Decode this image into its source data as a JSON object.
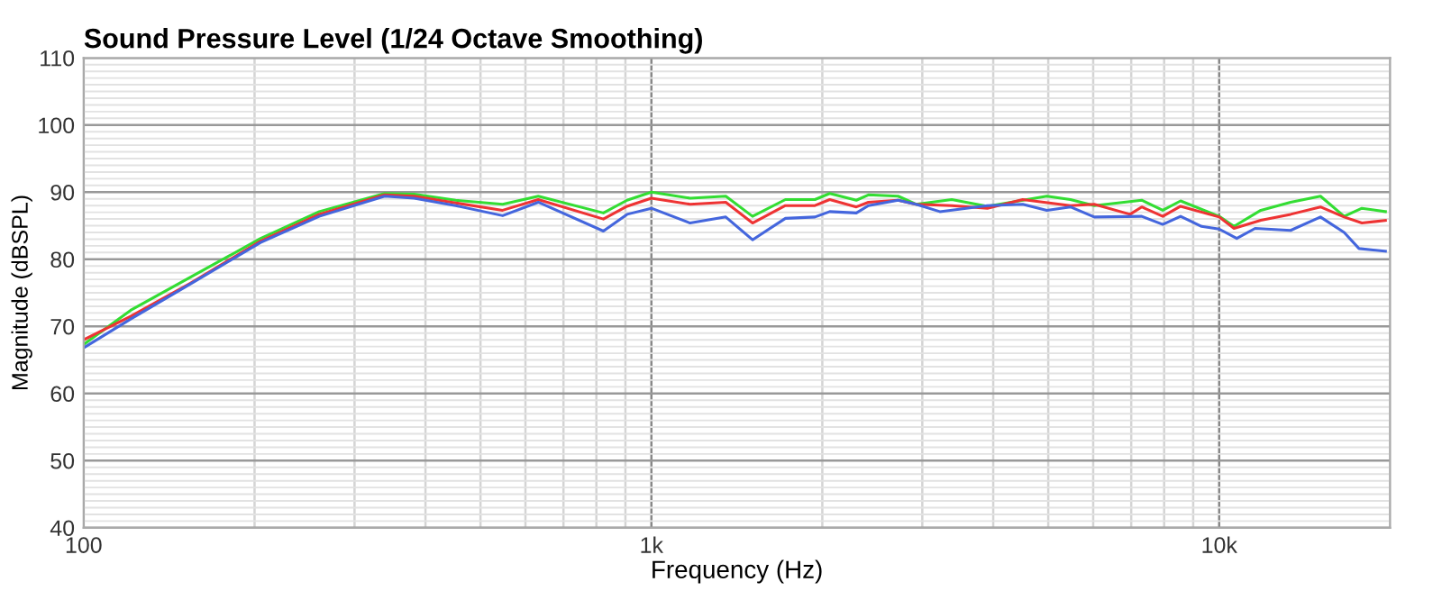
{
  "chart_data": {
    "type": "line",
    "title": "Sound Pressure Level (1/24 Octave Smoothing)",
    "xlabel": "Frequency (Hz)",
    "ylabel": "Magnitude (dBSPL)",
    "log": "x",
    "xlim": [
      100,
      20000
    ],
    "xticks": [
      {
        "value": 100,
        "label": "100"
      },
      {
        "value": 1000,
        "label": "1k"
      },
      {
        "value": 10000,
        "label": "10k"
      }
    ],
    "ylim": [
      40,
      110
    ],
    "yticks": [
      40,
      50,
      60,
      70,
      80,
      90,
      100,
      110
    ],
    "grid": true,
    "line_style": "solid",
    "marker": "none",
    "series": [
      {
        "color": "#33dd33",
        "x": [
          100,
          121,
          154,
          205,
          260,
          339,
          382,
          452,
          547,
          632,
          823,
          906,
          1000,
          1170,
          1352,
          1507,
          1722,
          1941,
          2061,
          2296,
          2411,
          2720,
          2925,
          3381,
          3906,
          4971,
          5470,
          6026,
          7305,
          7955,
          8552,
          10000,
          10620,
          11840,
          13360,
          15080,
          16600,
          17840,
          19630
        ],
        "values": [
          67.3,
          72.4,
          77.3,
          83.1,
          87.1,
          89.8,
          89.7,
          88.8,
          88.2,
          89.4,
          86.9,
          88.8,
          90,
          89.1,
          89.4,
          86.4,
          88.9,
          88.9,
          89.8,
          88.8,
          89.6,
          89.4,
          88.2,
          88.9,
          87.9,
          89.4,
          88.9,
          88.0,
          88.8,
          87.3,
          88.7,
          86.4,
          84.9,
          87.3,
          88.5,
          89.4,
          86.4,
          87.6,
          87.1
        ]
      },
      {
        "color": "#ee3333",
        "x": [
          100,
          121,
          154,
          205,
          260,
          339,
          382,
          452,
          547,
          632,
          823,
          906,
          1000,
          1170,
          1352,
          1507,
          1722,
          1941,
          2061,
          2296,
          2411,
          2720,
          2925,
          3381,
          3906,
          4508,
          5470,
          6026,
          6966,
          7305,
          7955,
          8552,
          10000,
          10620,
          11840,
          13360,
          15080,
          16600,
          17840,
          19630
        ],
        "values": [
          68.0,
          71.5,
          76.4,
          82.7,
          86.7,
          89.6,
          89.4,
          88.4,
          87.3,
          88.9,
          86.0,
          87.9,
          89.1,
          88.2,
          88.5,
          85.4,
          88.0,
          88.0,
          88.9,
          87.8,
          88.5,
          88.8,
          88.2,
          88.0,
          87.6,
          88.9,
          88.0,
          88.2,
          86.7,
          87.8,
          86.4,
          87.9,
          86.3,
          84.6,
          85.8,
          86.7,
          87.8,
          86.3,
          85.4,
          85.8
        ]
      },
      {
        "color": "#4466dd",
        "x": [
          100,
          121,
          154,
          205,
          260,
          339,
          382,
          452,
          547,
          632,
          823,
          906,
          1000,
          1170,
          1352,
          1507,
          1722,
          1941,
          2061,
          2296,
          2411,
          2720,
          2925,
          3221,
          3906,
          4508,
          4971,
          5470,
          6026,
          7305,
          7955,
          8552,
          9311,
          10000,
          10740,
          11570,
          13360,
          15080,
          16600,
          17630,
          19630
        ],
        "values": [
          66.8,
          71.1,
          76.3,
          82.5,
          86.4,
          89.4,
          89.1,
          88.0,
          86.5,
          88.5,
          84.2,
          86.7,
          87.6,
          85.4,
          86.3,
          82.9,
          86.1,
          86.3,
          87.1,
          86.9,
          88.0,
          88.8,
          88.2,
          87.1,
          88.0,
          88.2,
          87.3,
          87.8,
          86.3,
          86.4,
          85.2,
          86.4,
          84.9,
          84.5,
          83.1,
          84.6,
          84.3,
          86.3,
          84.0,
          81.6,
          81.2
        ]
      }
    ]
  }
}
